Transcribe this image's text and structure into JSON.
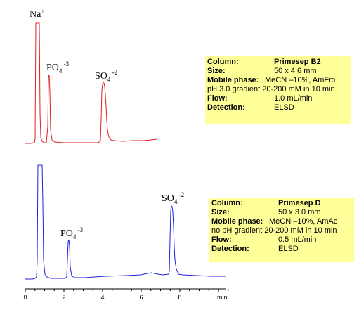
{
  "chart_data": [
    {
      "type": "line",
      "name_label": "chromatogram-top",
      "color": "#e02020",
      "peaks": [
        {
          "label": "Na",
          "charge": "+",
          "x": 0.6
        },
        {
          "label": "PO",
          "sub": "4",
          "charge": "-3",
          "x": 1.2
        },
        {
          "label": "SO",
          "sub": "4",
          "charge": "-2",
          "x": 4.1
        }
      ],
      "info": {
        "column_key": "Column:",
        "column_val": "Primesep B2",
        "size_key": "Size:",
        "size_val": "50 x 4.6 mm",
        "mobile_key": "Mobile phase:",
        "mobile_val": "MeCN –10%, AmFm",
        "gradient_line": "pH 3.0  gradient 20-200 mM in 10 min",
        "flow_key": "Flow:",
        "flow_val": "1.0 mL/min",
        "detection_key": "Detection:",
        "detection_val": "ELSD"
      }
    },
    {
      "type": "line",
      "name_label": "chromatogram-bottom",
      "color": "#2020e0",
      "peaks": [
        {
          "label": "PO",
          "sub": "4",
          "charge": "-3",
          "x": 2.3
        },
        {
          "label": "SO",
          "sub": "4",
          "charge": "-2",
          "x": 7.6
        }
      ],
      "info": {
        "column_key": "Column:",
        "column_val": "Primesep D",
        "size_key": "Size:",
        "size_val": "50 x 3.0 mm",
        "mobile_key": "Mobile phase:",
        "mobile_val": "MeCN –10%, AmAc",
        "gradient_line": "no pH gradient 20-200 mM in 10 min",
        "flow_key": "Flow:",
        "flow_val": "0.5 mL/min",
        "detection_key": "Detection:",
        "detection_val": "ELSD"
      }
    }
  ],
  "x_axis": {
    "ticks": [
      "0",
      "2",
      "4",
      "6",
      "8"
    ],
    "unit": "min",
    "range": [
      0,
      10.5
    ]
  }
}
